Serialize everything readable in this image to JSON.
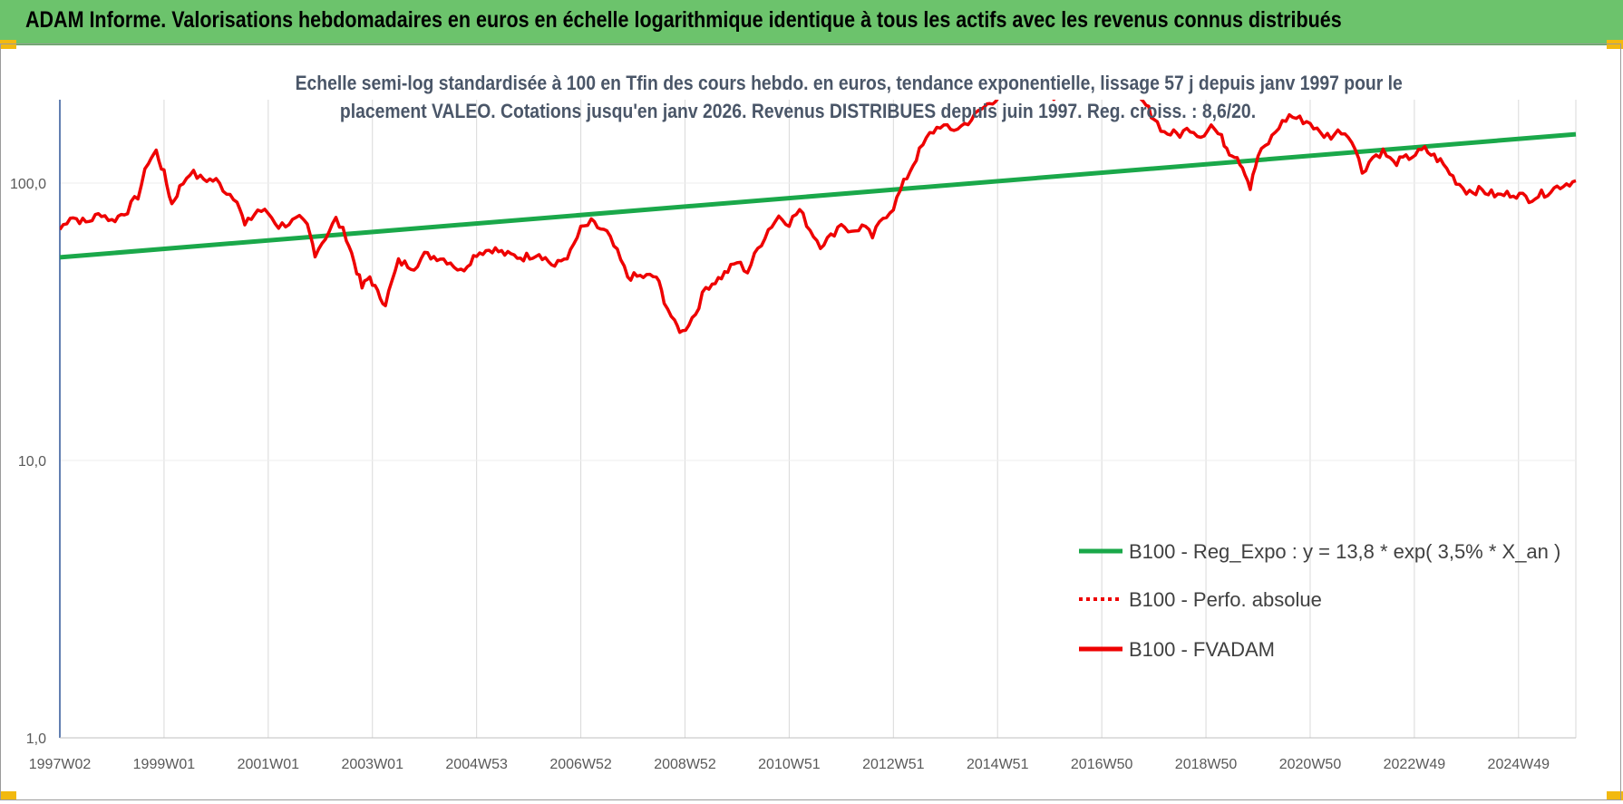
{
  "header": {
    "title": "ADAM Informe. Valorisations hebdomadaires en euros en échelle logarithmique identique à tous les actifs avec les revenus connus distribués"
  },
  "colors": {
    "header_bg": "#6cc36c",
    "corner_marks": "#f2b90f",
    "trend_line": "#1aa84a",
    "price_line": "#ee0000",
    "grid": "#d9d9d9"
  },
  "chart_data": {
    "type": "line",
    "title": "Echelle semi-log standardisée à 100 en Tfin des cours hebdo. en euros, tendance exponentielle, lissage 57 j depuis janv 1997 pour le",
    "subtitle": "placement VALEO. Cotations jusqu'en janv 2026. Revenus DISTRIBUES depuis juin 1997. Reg. croiss. : 8,6/20.",
    "y_scale": "log",
    "ylim": [
      1,
      190
    ],
    "y_ticks": [
      1,
      10,
      100
    ],
    "y_tick_labels": [
      "1,0",
      "10,0",
      "100,0"
    ],
    "x_range": [
      1997.0,
      2026.1
    ],
    "x_ticks": [
      1997.0,
      1999.0,
      2001.0,
      2003.0,
      2005.0,
      2007.0,
      2009.0,
      2011.0,
      2013.0,
      2015.0,
      2017.0,
      2019.0,
      2021.0,
      2023.0,
      2025.0
    ],
    "x_tick_labels": [
      "1997W02",
      "1999W01",
      "2001W01",
      "2003W01",
      "2004W53",
      "2006W52",
      "2008W52",
      "2010W51",
      "2012W51",
      "2014W51",
      "2016W50",
      "2018W50",
      "2020W50",
      "2022W49",
      "2024W49"
    ],
    "grid": "vertical",
    "legend_position": "bottom-right",
    "legend": [
      {
        "name": "B100 - Reg_Expo : y = 13,8 * exp( 3,5% *  X_an )",
        "style": "solid",
        "color": "#1aa84a"
      },
      {
        "name": "B100 - Perfo. absolue",
        "style": "dotted",
        "color": "#ee0000"
      },
      {
        "name": "B100 - FVADAM",
        "style": "solid",
        "color": "#ee0000"
      }
    ],
    "series": [
      {
        "name": "B100 - Reg_Expo : y = 13,8 * exp( 3,5% *  X_an )",
        "type": "line",
        "points": [
          [
            1997.0,
            54
          ],
          [
            2026.1,
            150
          ]
        ]
      },
      {
        "name": "B100 - FVADAM",
        "type": "line",
        "points": [
          [
            1997.0,
            68
          ],
          [
            1997.2,
            76
          ],
          [
            1997.5,
            72
          ],
          [
            1997.8,
            78
          ],
          [
            1998.0,
            73
          ],
          [
            1998.3,
            80
          ],
          [
            1998.5,
            90
          ],
          [
            1998.7,
            120
          ],
          [
            1998.85,
            130
          ],
          [
            1999.0,
            108
          ],
          [
            1999.15,
            84
          ],
          [
            1999.3,
            96
          ],
          [
            1999.5,
            110
          ],
          [
            1999.7,
            104
          ],
          [
            2000.0,
            102
          ],
          [
            2000.2,
            93
          ],
          [
            2000.4,
            88
          ],
          [
            2000.55,
            70
          ],
          [
            2000.8,
            80
          ],
          [
            2001.0,
            78
          ],
          [
            2001.2,
            70
          ],
          [
            2001.4,
            72
          ],
          [
            2001.6,
            74
          ],
          [
            2001.75,
            70
          ],
          [
            2001.9,
            56
          ],
          [
            2002.1,
            64
          ],
          [
            2002.3,
            74
          ],
          [
            2002.5,
            64
          ],
          [
            2002.65,
            52
          ],
          [
            2002.8,
            42
          ],
          [
            2002.95,
            46
          ],
          [
            2003.1,
            40
          ],
          [
            2003.25,
            37
          ],
          [
            2003.5,
            52
          ],
          [
            2003.8,
            50
          ],
          [
            2004.0,
            55
          ],
          [
            2004.3,
            54
          ],
          [
            2004.5,
            52
          ],
          [
            2004.7,
            48
          ],
          [
            2005.0,
            56
          ],
          [
            2005.3,
            58
          ],
          [
            2005.6,
            55
          ],
          [
            2005.9,
            54
          ],
          [
            2006.2,
            56
          ],
          [
            2006.5,
            50
          ],
          [
            2006.8,
            56
          ],
          [
            2007.0,
            68
          ],
          [
            2007.2,
            72
          ],
          [
            2007.5,
            66
          ],
          [
            2007.7,
            56
          ],
          [
            2007.9,
            46
          ],
          [
            2008.2,
            46
          ],
          [
            2008.45,
            46
          ],
          [
            2008.6,
            38
          ],
          [
            2008.8,
            31
          ],
          [
            2008.95,
            29
          ],
          [
            2009.2,
            34
          ],
          [
            2009.4,
            42
          ],
          [
            2009.7,
            46
          ],
          [
            2010.0,
            52
          ],
          [
            2010.2,
            48
          ],
          [
            2010.4,
            58
          ],
          [
            2010.6,
            68
          ],
          [
            2010.8,
            76
          ],
          [
            2011.0,
            72
          ],
          [
            2011.2,
            80
          ],
          [
            2011.4,
            68
          ],
          [
            2011.6,
            60
          ],
          [
            2011.8,
            64
          ],
          [
            2012.0,
            72
          ],
          [
            2012.2,
            66
          ],
          [
            2012.4,
            70
          ],
          [
            2012.6,
            64
          ],
          [
            2012.8,
            75
          ],
          [
            2013.0,
            82
          ],
          [
            2013.2,
            100
          ],
          [
            2013.5,
            130
          ],
          [
            2013.7,
            150
          ],
          [
            2013.9,
            162
          ],
          [
            2014.1,
            155
          ],
          [
            2014.3,
            160
          ],
          [
            2014.5,
            170
          ],
          [
            2014.7,
            185
          ],
          [
            2014.85,
            195
          ],
          [
            2015.4,
            230
          ],
          [
            2015.9,
            205
          ],
          [
            2016.5,
            210
          ],
          [
            2017.3,
            240
          ],
          [
            2017.7,
            200
          ],
          [
            2017.85,
            190
          ],
          [
            2018.0,
            172
          ],
          [
            2018.2,
            152
          ],
          [
            2018.5,
            150
          ],
          [
            2018.7,
            158
          ],
          [
            2018.9,
            148
          ],
          [
            2019.1,
            162
          ],
          [
            2019.3,
            145
          ],
          [
            2019.45,
            130
          ],
          [
            2019.6,
            125
          ],
          [
            2019.75,
            110
          ],
          [
            2019.85,
            96
          ],
          [
            2020.0,
            125
          ],
          [
            2020.2,
            140
          ],
          [
            2020.4,
            160
          ],
          [
            2020.6,
            175
          ],
          [
            2020.8,
            170
          ],
          [
            2021.0,
            165
          ],
          [
            2021.2,
            150
          ],
          [
            2021.4,
            148
          ],
          [
            2021.6,
            155
          ],
          [
            2021.8,
            145
          ],
          [
            2022.0,
            110
          ],
          [
            2022.2,
            124
          ],
          [
            2022.4,
            130
          ],
          [
            2022.6,
            118
          ],
          [
            2022.9,
            124
          ],
          [
            2023.2,
            132
          ],
          [
            2023.5,
            120
          ],
          [
            2023.8,
            102
          ],
          [
            2024.0,
            94
          ],
          [
            2024.3,
            94
          ],
          [
            2024.6,
            90
          ],
          [
            2024.9,
            92
          ],
          [
            2025.2,
            88
          ],
          [
            2025.5,
            92
          ],
          [
            2025.8,
            98
          ],
          [
            2026.1,
            102
          ]
        ]
      }
    ]
  }
}
